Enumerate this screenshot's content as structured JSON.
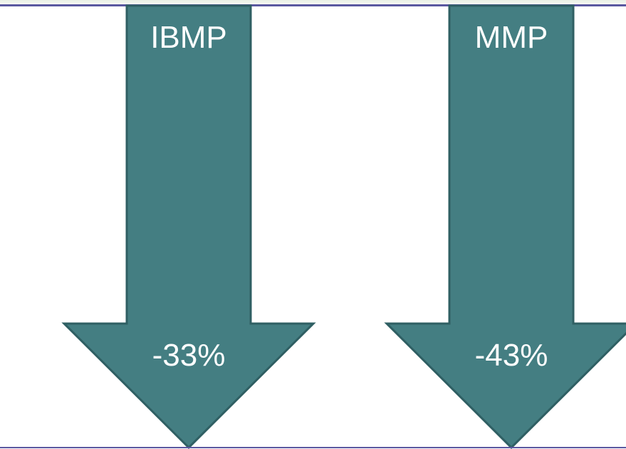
{
  "colors": {
    "arrow_fill": "#447e82",
    "arrow_border": "#2f5f63",
    "rule_line": "#5a58a0",
    "text": "#ffffff"
  },
  "arrows": [
    {
      "label": "IBMP",
      "value": "-33%",
      "icon": "down-arrow"
    },
    {
      "label": "MMP",
      "value": "-43%",
      "icon": "down-arrow"
    }
  ]
}
